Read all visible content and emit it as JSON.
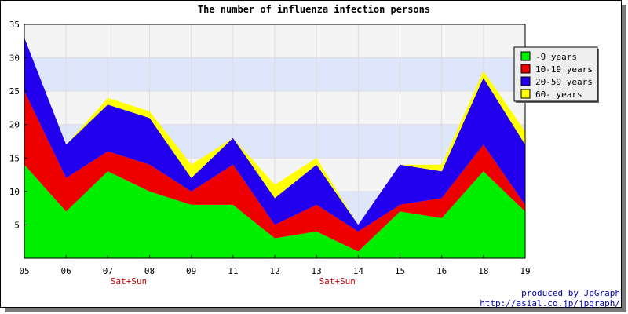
{
  "chart_data": {
    "type": "area",
    "stacked": true,
    "title": "The number of influenza infection persons",
    "categories": [
      "05",
      "06",
      "07",
      "08",
      "09",
      "11",
      "12",
      "13",
      "14",
      "15",
      "16",
      "18",
      "19"
    ],
    "ylim": [
      0,
      35
    ],
    "yticks": [
      5,
      10,
      15,
      20,
      25,
      30,
      35
    ],
    "grid": true,
    "band_colors": [
      "#f4f4f4",
      "#dde6fb"
    ],
    "legend_position": "top-right",
    "series": [
      {
        "name": "-9 years",
        "color": "#00ee00",
        "values": [
          14,
          7,
          13,
          10,
          8,
          8,
          3,
          4,
          1,
          7,
          6,
          13,
          7
        ]
      },
      {
        "name": "10-19 years",
        "color": "#ee0000",
        "values": [
          11,
          5,
          3,
          4,
          2,
          6,
          2,
          4,
          3,
          1,
          3,
          4,
          1
        ]
      },
      {
        "name": "20-59 years",
        "color": "#2200ee",
        "values": [
          8,
          5,
          7,
          7,
          2,
          4,
          4,
          6,
          1,
          6,
          4,
          10,
          9
        ]
      },
      {
        "name": "60- years",
        "color": "#ffff00",
        "values": [
          0,
          0,
          1,
          1,
          2,
          0,
          2,
          1,
          0,
          0,
          1,
          1,
          2
        ]
      }
    ],
    "annotations": [
      {
        "text": "Sat+Sun",
        "between": [
          "07",
          "08"
        ]
      },
      {
        "text": "Sat+Sun",
        "between": [
          "13",
          "14"
        ]
      }
    ]
  },
  "footer": {
    "line1": "produced by JpGraph",
    "line2": "http://asial.co.jp/jpgraph/"
  }
}
